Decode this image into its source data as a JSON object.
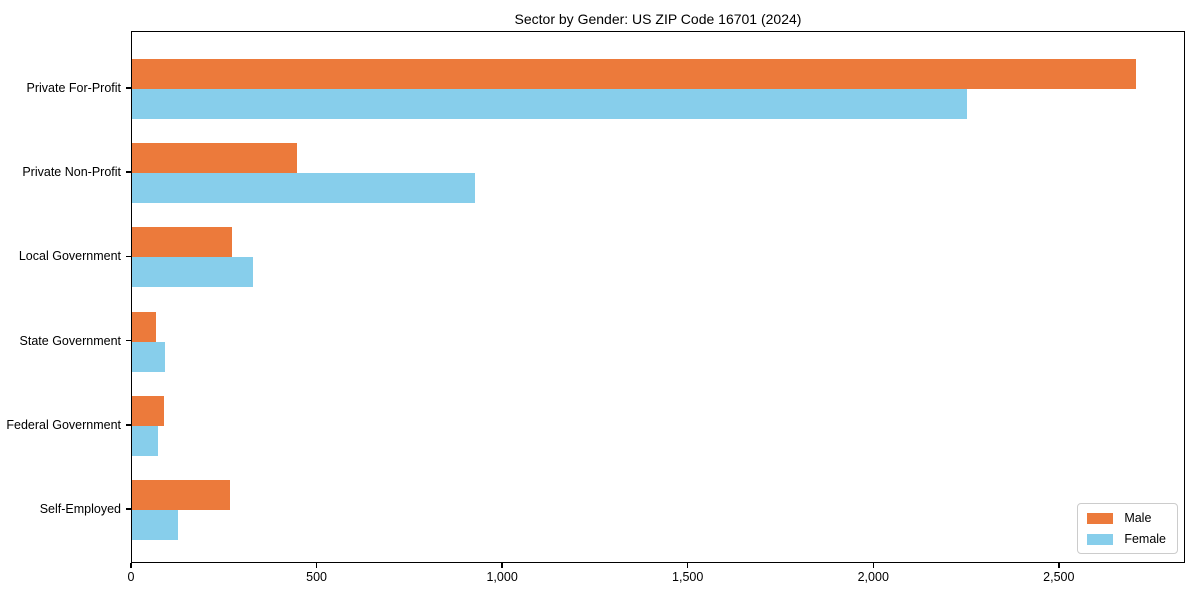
{
  "figure": {
    "background_color": "#ffffff",
    "spine_color": "#000000"
  },
  "chart_data": {
    "type": "bar",
    "orientation": "horizontal",
    "title": "Sector by Gender: US ZIP Code 16701 (2024)",
    "xlabel": "",
    "ylabel": "",
    "categories": [
      "Private For-Profit",
      "Private Non-Profit",
      "Local Government",
      "State Government",
      "Federal Government",
      "Self-Employed"
    ],
    "series": [
      {
        "name": "Male",
        "color": "#EC7A3B",
        "values": [
          2705,
          445,
          270,
          65,
          85,
          265
        ]
      },
      {
        "name": "Female",
        "color": "#87CEEB",
        "values": [
          2250,
          925,
          325,
          90,
          70,
          125
        ]
      }
    ],
    "xlim": [
      0,
      2840
    ],
    "xticks": [
      0,
      500,
      1000,
      1500,
      2000,
      2500
    ],
    "xtick_labels": [
      "0",
      "500",
      "1,000",
      "1,500",
      "2,000",
      "2,500"
    ],
    "grid": false,
    "legend_position": "lower right"
  },
  "legend": {
    "items": [
      {
        "label": "Male",
        "color": "#EC7A3B"
      },
      {
        "label": "Female",
        "color": "#87CEEB"
      }
    ]
  }
}
